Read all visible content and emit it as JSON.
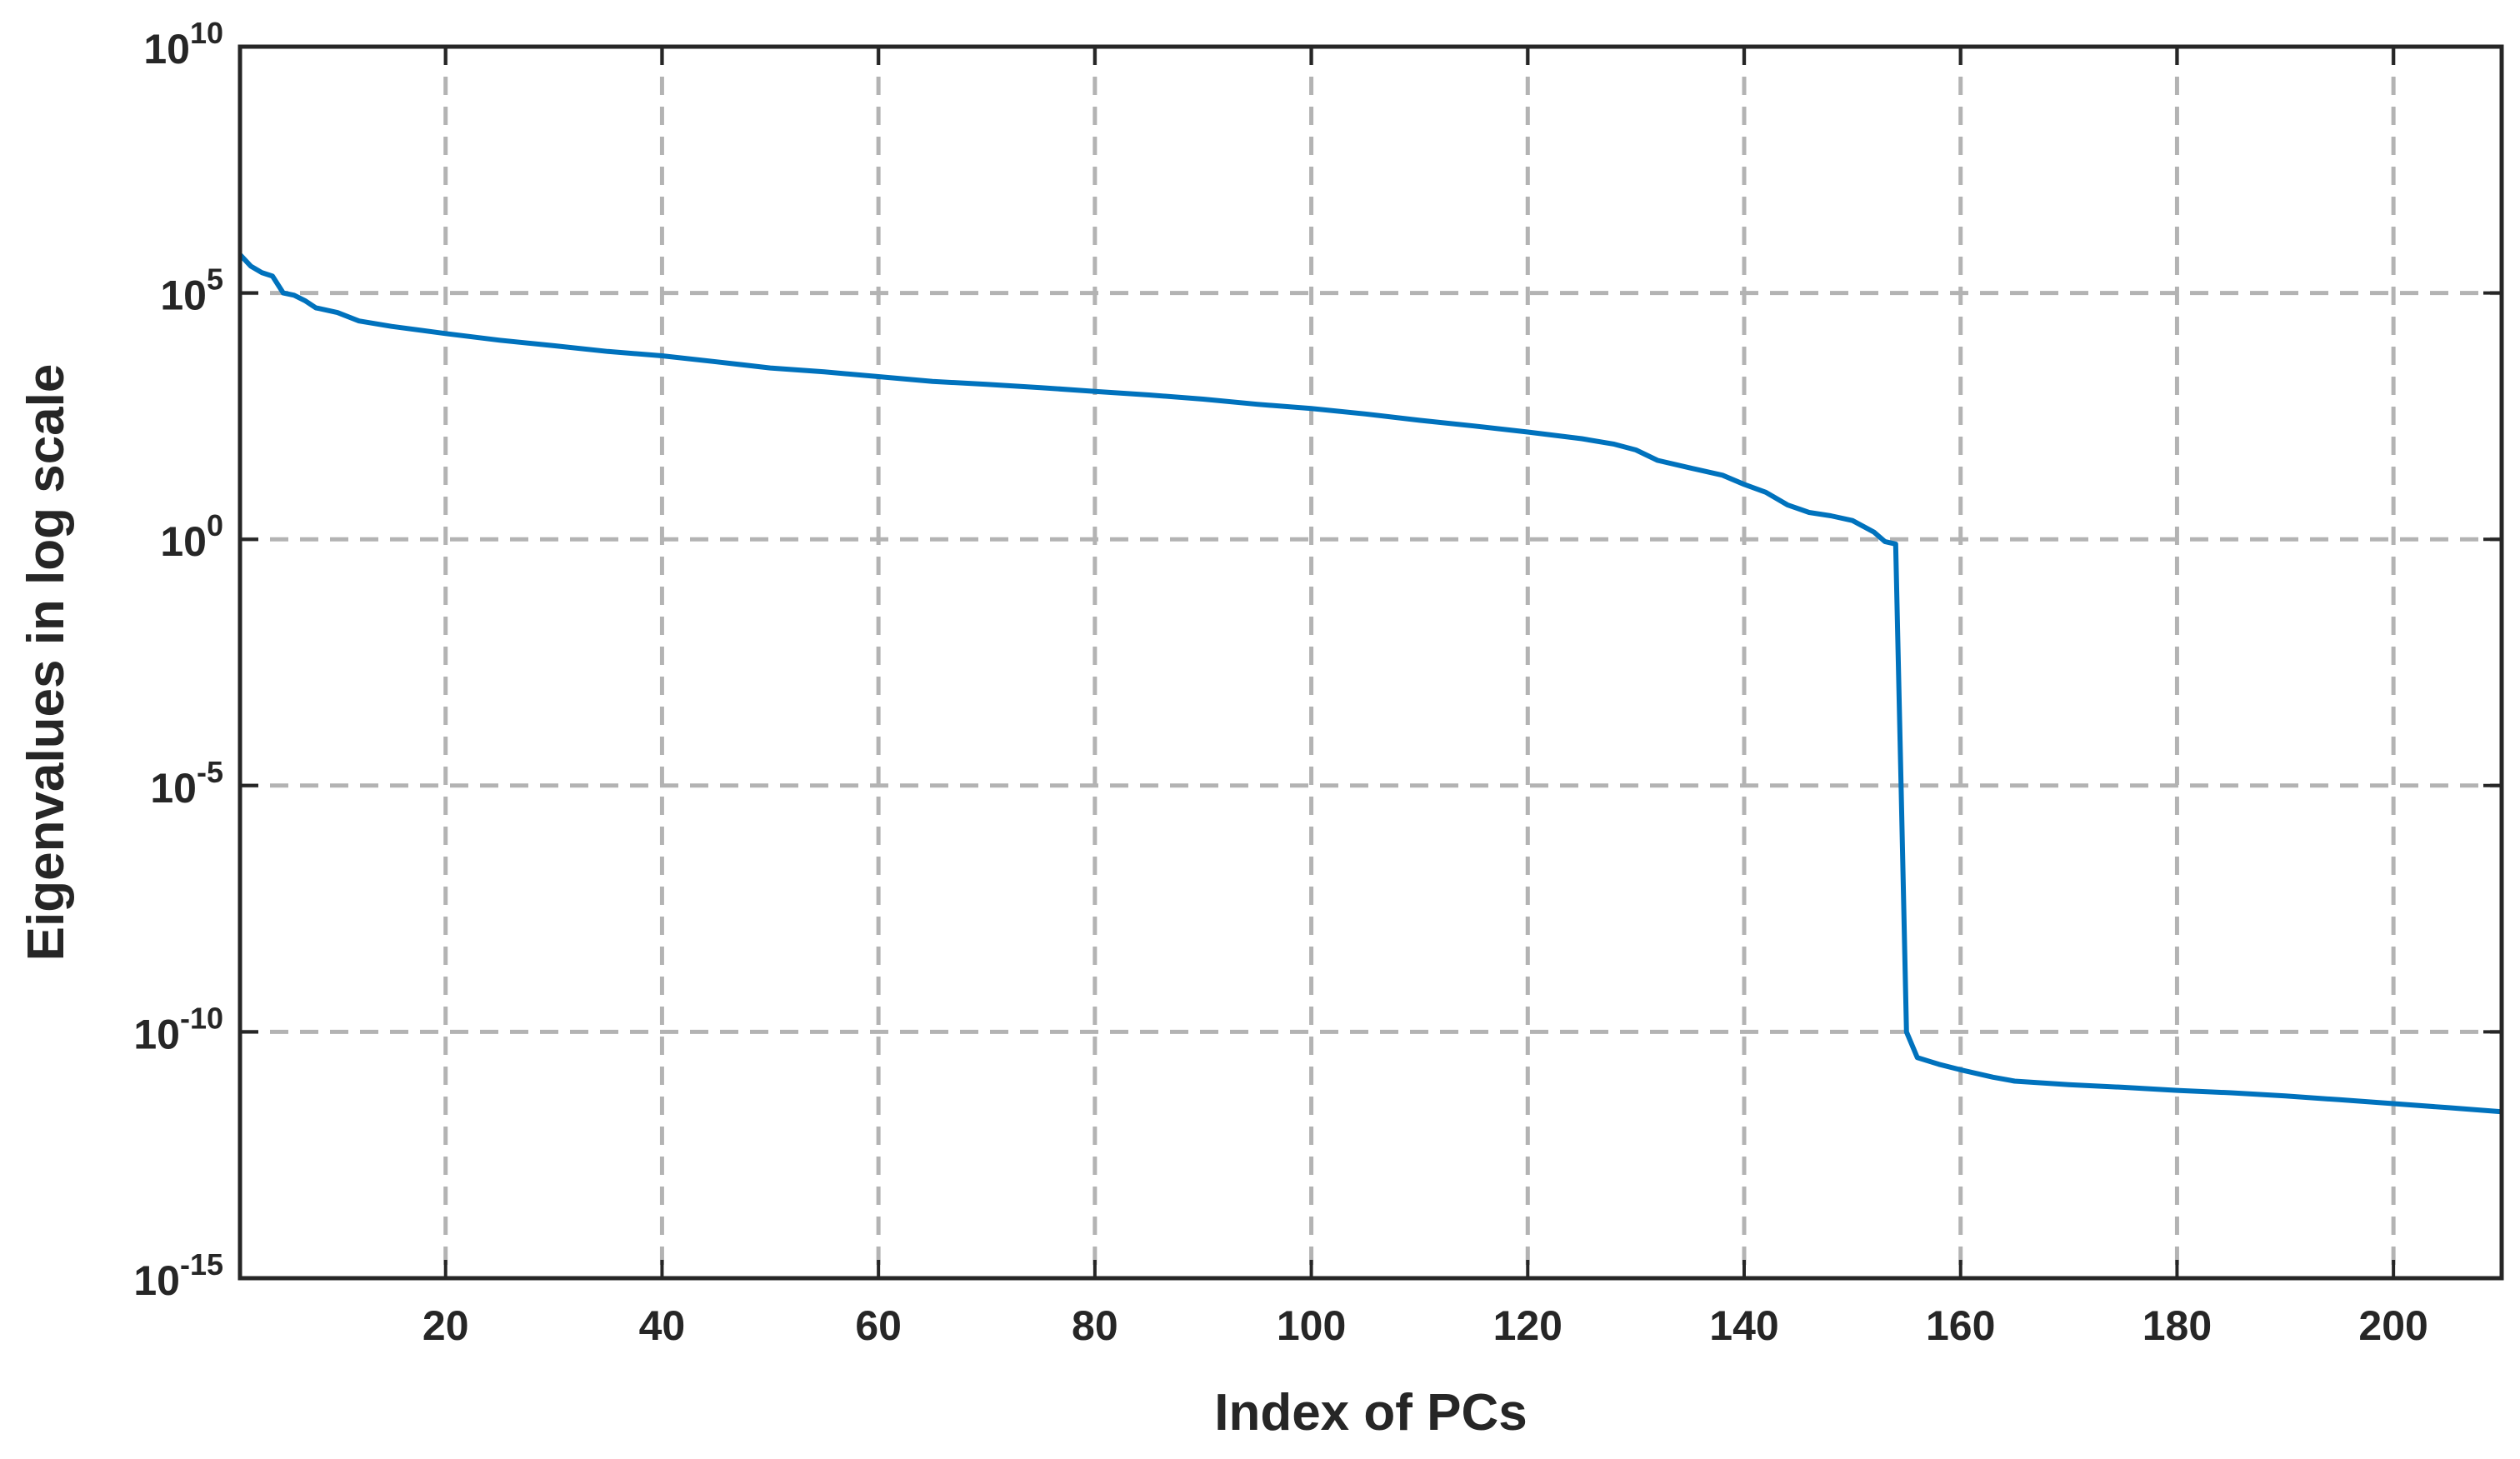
{
  "chart_data": {
    "type": "line",
    "title": "",
    "xlabel": "Index of PCs",
    "ylabel": "Eigenvalues in log scale",
    "yscale": "log",
    "xlim": [
      1,
      210
    ],
    "ylim": [
      1e-15,
      10000000000.0
    ],
    "grid": true,
    "x_ticks": [
      20,
      40,
      60,
      80,
      100,
      120,
      140,
      160,
      180,
      200
    ],
    "x_tick_labels": [
      "20",
      "40",
      "60",
      "80",
      "100",
      "120",
      "140",
      "160",
      "180",
      "200"
    ],
    "y_ticks": [
      {
        "value": 1e-15,
        "base": "10",
        "exp": "-15"
      },
      {
        "value": 1e-10,
        "base": "10",
        "exp": "-10"
      },
      {
        "value": 1e-05,
        "base": "10",
        "exp": "-5"
      },
      {
        "value": 1,
        "base": "10",
        "exp": "0"
      },
      {
        "value": 100000.0,
        "base": "10",
        "exp": "5"
      },
      {
        "value": 10000000000.0,
        "base": "10",
        "exp": "10"
      }
    ],
    "series": [
      {
        "color": "#0072BD",
        "points": [
          [
            1,
            600000
          ],
          [
            2,
            350000
          ],
          [
            3,
            260000
          ],
          [
            4,
            220000
          ],
          [
            5,
            100000
          ],
          [
            6,
            90000
          ],
          [
            7,
            70000
          ],
          [
            8,
            50000
          ],
          [
            10,
            40000
          ],
          [
            12,
            27000
          ],
          [
            15,
            21000
          ],
          [
            20,
            15000
          ],
          [
            25,
            11000
          ],
          [
            30,
            8500
          ],
          [
            35,
            6500
          ],
          [
            40,
            5300
          ],
          [
            45,
            4000
          ],
          [
            50,
            3000
          ],
          [
            55,
            2500
          ],
          [
            60,
            2000
          ],
          [
            65,
            1600
          ],
          [
            70,
            1400
          ],
          [
            75,
            1200
          ],
          [
            80,
            1000
          ],
          [
            85,
            850
          ],
          [
            90,
            700
          ],
          [
            95,
            550
          ],
          [
            100,
            450
          ],
          [
            105,
            350
          ],
          [
            110,
            260
          ],
          [
            115,
            200
          ],
          [
            120,
            150
          ],
          [
            125,
            110
          ],
          [
            128,
            85
          ],
          [
            130,
            65
          ],
          [
            132,
            40
          ],
          [
            135,
            28
          ],
          [
            138,
            20
          ],
          [
            140,
            13
          ],
          [
            142,
            9
          ],
          [
            144,
            5
          ],
          [
            146,
            3.5
          ],
          [
            148,
            3
          ],
          [
            150,
            2.4
          ],
          [
            152,
            1.4
          ],
          [
            153,
            0.9
          ],
          [
            154,
            0.8
          ],
          [
            154.5,
            1e-05
          ],
          [
            155,
            1e-10
          ],
          [
            156,
            3e-11
          ],
          [
            158,
            2.2e-11
          ],
          [
            160,
            1.7e-11
          ],
          [
            163,
            1.2e-11
          ],
          [
            165,
            1e-11
          ],
          [
            170,
            8.5e-12
          ],
          [
            175,
            7.5e-12
          ],
          [
            180,
            6.5e-12
          ],
          [
            185,
            5.8e-12
          ],
          [
            190,
            5e-12
          ],
          [
            195,
            4.2e-12
          ],
          [
            200,
            3.5e-12
          ],
          [
            205,
            2.9e-12
          ],
          [
            210,
            2.4e-12
          ]
        ]
      }
    ]
  }
}
